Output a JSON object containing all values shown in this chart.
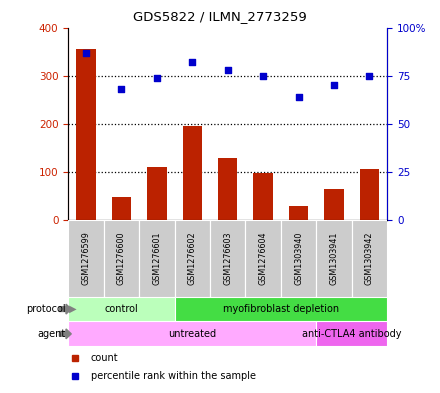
{
  "title": "GDS5822 / ILMN_2773259",
  "samples": [
    "GSM1276599",
    "GSM1276600",
    "GSM1276601",
    "GSM1276602",
    "GSM1276603",
    "GSM1276604",
    "GSM1303940",
    "GSM1303941",
    "GSM1303942"
  ],
  "counts": [
    355,
    48,
    110,
    195,
    128,
    97,
    30,
    65,
    107
  ],
  "percentile_ranks": [
    87,
    68,
    74,
    82,
    78,
    75,
    64,
    70,
    75
  ],
  "left_ylim": [
    0,
    400
  ],
  "right_ylim": [
    0,
    100
  ],
  "left_yticks": [
    0,
    100,
    200,
    300,
    400
  ],
  "right_yticks": [
    0,
    25,
    50,
    75,
    100
  ],
  "right_yticklabels": [
    "0",
    "25",
    "50",
    "75",
    "100%"
  ],
  "bar_color": "#bb2200",
  "dot_color": "#0000cc",
  "protocol_labels": [
    {
      "text": "control",
      "start": 0,
      "end": 3,
      "color": "#bbffbb"
    },
    {
      "text": "myofibroblast depletion",
      "start": 3,
      "end": 9,
      "color": "#44dd44"
    }
  ],
  "agent_labels": [
    {
      "text": "untreated",
      "start": 0,
      "end": 7,
      "color": "#ffaaff"
    },
    {
      "text": "anti-CTLA4 antibody",
      "start": 7,
      "end": 9,
      "color": "#ee66ee"
    }
  ],
  "protocol_row_label": "protocol",
  "agent_row_label": "agent",
  "legend_count_label": "count",
  "legend_percentile_label": "percentile rank within the sample",
  "sample_box_color": "#cccccc",
  "left_tick_color": "#cc2200",
  "right_tick_color": "#0000cc"
}
